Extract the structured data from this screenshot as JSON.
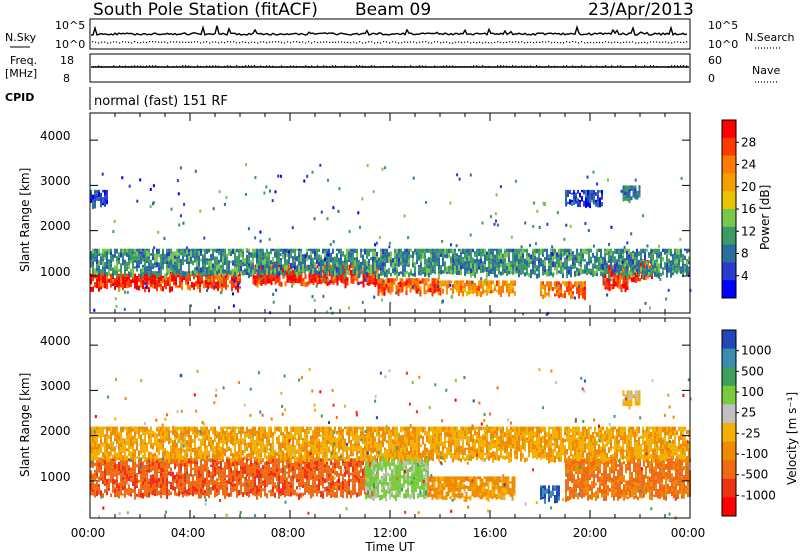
{
  "header": {
    "station": "South Pole Station (fitACF)",
    "beam": "Beam 09",
    "date": "23/Apr/2013"
  },
  "nsky_panel": {
    "left_label": "N.Sky",
    "left_ticks": [
      "10^5",
      "10^0"
    ],
    "right_ticks": [
      "10^5",
      "10^0"
    ],
    "right_label": "N.Search"
  },
  "freq_panel": {
    "left_label_1": "Freq.",
    "left_label_2": "[MHz]",
    "left_ticks": [
      "18",
      "8"
    ],
    "right_ticks": [
      "60",
      "0"
    ],
    "right_label": "Nave"
  },
  "cpid_panel": {
    "label": "CPID",
    "text": "normal (fast) 151 RF"
  },
  "axes": {
    "ylabel": "Slant Range [km]",
    "xlabel": "Time UT",
    "yticks": [
      "4000",
      "3000",
      "2000",
      "1000"
    ],
    "xticks": [
      "00:00",
      "04:00",
      "08:00",
      "12:00",
      "16:00",
      "20:00",
      "00:00"
    ]
  },
  "chart_data": [
    {
      "type": "heatmap",
      "title": "",
      "xlabel": "",
      "ylabel": "Slant Range [km]",
      "x_range_hours": [
        0,
        24
      ],
      "ylim": [
        180,
        4600
      ],
      "colorbar": {
        "label": "Power [dB]",
        "ticks": [
          "28",
          "24",
          "20",
          "16",
          "12",
          "8",
          "4"
        ],
        "colors": [
          "#ff0000",
          "#ff3a00",
          "#ff7a00",
          "#f4a000",
          "#e8c400",
          "#78c850",
          "#3c9a64",
          "#2a6e9c",
          "#2a3cd0",
          "#0000ff"
        ]
      },
      "regions": [
        {
          "x": [
            0.0,
            3.0
          ],
          "y": [
            750,
            1050
          ],
          "level": 0.96
        },
        {
          "x": [
            3.0,
            6.0
          ],
          "y": [
            750,
            1100
          ],
          "level": 0.9
        },
        {
          "x": [
            6.5,
            11.5
          ],
          "y": [
            850,
            1250
          ],
          "level": 0.95
        },
        {
          "x": [
            11.5,
            14.0
          ],
          "y": [
            650,
            950
          ],
          "level": 0.85
        },
        {
          "x": [
            14.0,
            17.0
          ],
          "y": [
            650,
            900
          ],
          "level": 0.7
        },
        {
          "x": [
            18.0,
            19.8
          ],
          "y": [
            580,
            880
          ],
          "level": 0.8
        },
        {
          "x": [
            20.5,
            21.5
          ],
          "y": [
            700,
            1250
          ],
          "level": 0.95
        },
        {
          "x": [
            21.0,
            22.5
          ],
          "y": [
            950,
            1350
          ],
          "level": 0.92
        },
        {
          "x": [
            0.0,
            24.0
          ],
          "y": [
            1050,
            1600
          ],
          "level": 0.3
        },
        {
          "x": [
            0.0,
            0.7
          ],
          "y": [
            2600,
            2900
          ],
          "level": 0.15
        },
        {
          "x": [
            19.0,
            20.5
          ],
          "y": [
            2600,
            2900
          ],
          "level": 0.15
        },
        {
          "x": [
            21.3,
            22.0
          ],
          "y": [
            2700,
            3000
          ],
          "level": 0.25
        }
      ]
    },
    {
      "type": "heatmap",
      "title": "",
      "xlabel": "Time UT",
      "ylabel": "Slant Range [km]",
      "x_range_hours": [
        0,
        24
      ],
      "ylim": [
        180,
        4600
      ],
      "colorbar": {
        "label": "Velocity [m s⁻¹]",
        "ticks": [
          "1000",
          "500",
          "100",
          "25",
          "-25",
          "-100",
          "-500",
          "-1000"
        ],
        "colors": [
          "#2048b8",
          "#3a8cb0",
          "#3ca05a",
          "#78cc3c",
          "#c0c0c0",
          "#f4b000",
          "#f08a00",
          "#f06a14",
          "#ee3014",
          "#ff0000"
        ]
      },
      "regions": [
        {
          "x": [
            0.0,
            11.5
          ],
          "y": [
            700,
            1500
          ],
          "level": -0.6
        },
        {
          "x": [
            11.0,
            13.5
          ],
          "y": [
            650,
            1550
          ],
          "level": 0.3
        },
        {
          "x": [
            13.5,
            17.0
          ],
          "y": [
            650,
            1100
          ],
          "level": -0.3
        },
        {
          "x": [
            18.0,
            18.8
          ],
          "y": [
            600,
            900
          ],
          "level": 0.95
        },
        {
          "x": [
            19.0,
            24.0
          ],
          "y": [
            650,
            1500
          ],
          "level": -0.5
        },
        {
          "x": [
            0.0,
            24.0
          ],
          "y": [
            1500,
            2200
          ],
          "level": -0.2
        },
        {
          "x": [
            21.3,
            22.0
          ],
          "y": [
            2700,
            3000
          ],
          "level": 0.0
        }
      ]
    }
  ]
}
